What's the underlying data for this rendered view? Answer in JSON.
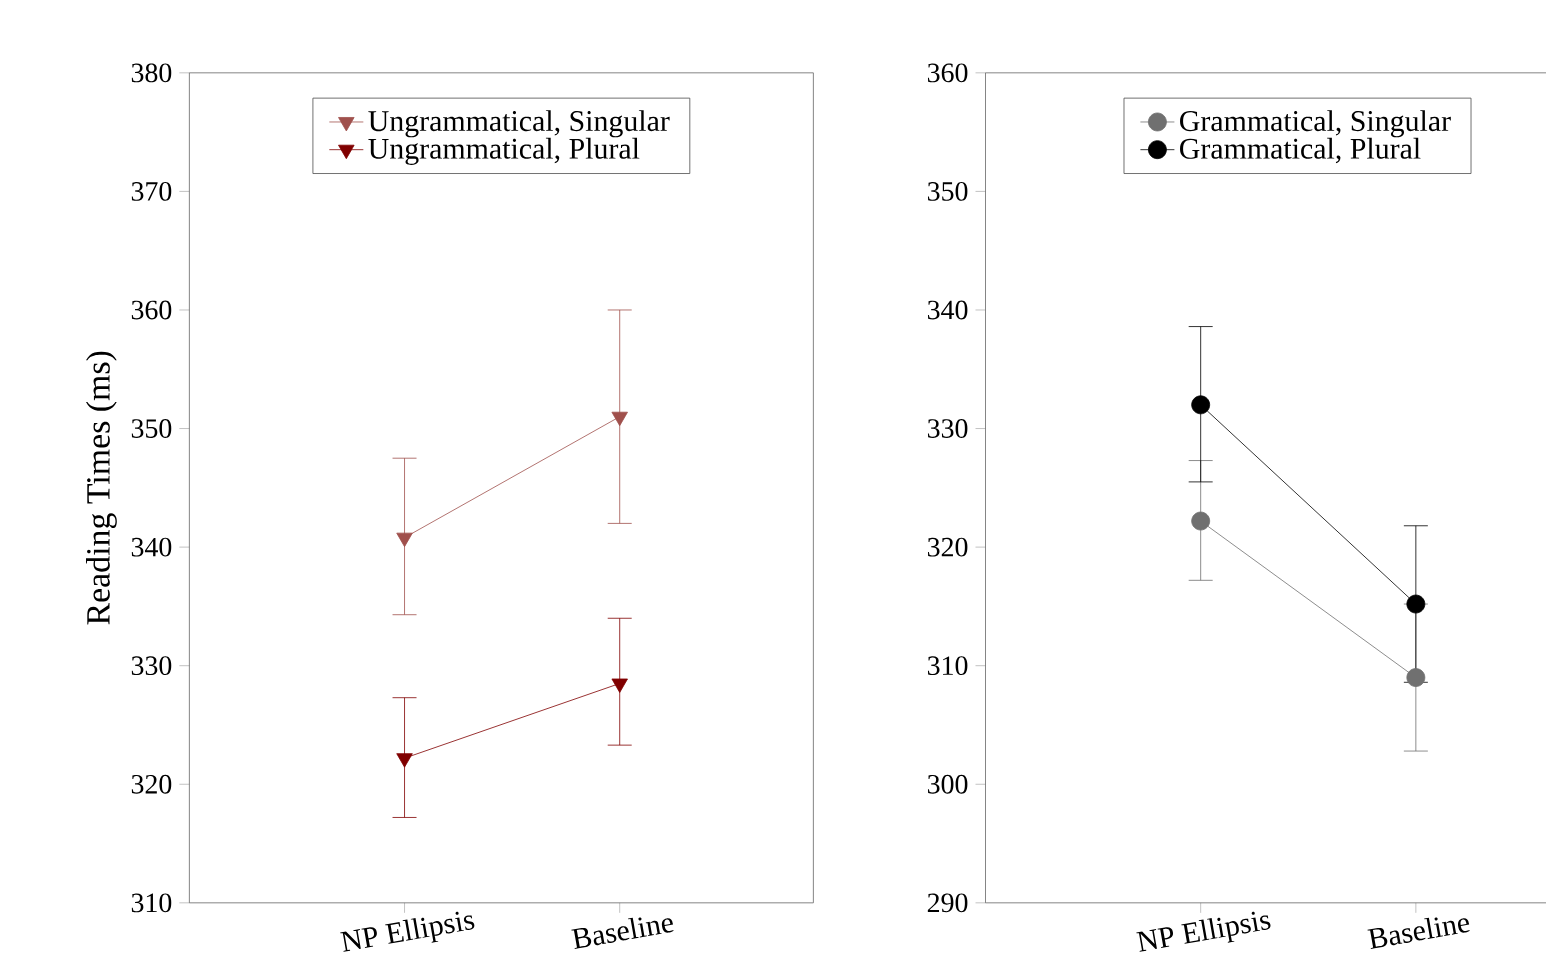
{
  "chart_data": [
    {
      "type": "line",
      "ylabel": "Reading Times (ms)",
      "categories": [
        "NP Ellipsis",
        "Baseline"
      ],
      "ylim": [
        310,
        380
      ],
      "yticks": [
        310,
        320,
        330,
        340,
        350,
        360,
        370,
        380
      ],
      "legend": "top",
      "marker": "triangle",
      "grid": false,
      "series": [
        {
          "name": "Ungrammatical, Singular",
          "color": "#a0504c",
          "values": [
            340.8,
            351.0
          ],
          "errors": [
            [
              334.3,
              347.5
            ],
            [
              342.0,
              360.0
            ]
          ]
        },
        {
          "name": "Ungrammatical, Plural",
          "color": "#800000",
          "values": [
            322.2,
            328.5
          ],
          "errors": [
            [
              317.2,
              327.3
            ],
            [
              323.3,
              334.0
            ]
          ]
        }
      ]
    },
    {
      "type": "line",
      "categories": [
        "NP Ellipsis",
        "Baseline"
      ],
      "ylim": [
        290,
        360
      ],
      "yticks": [
        290,
        300,
        310,
        320,
        330,
        340,
        350,
        360
      ],
      "legend": "top",
      "marker": "circle",
      "grid": false,
      "series": [
        {
          "name": "Grammatical, Singular",
          "color": "#707070",
          "values": [
            322.2,
            309.0
          ],
          "errors": [
            [
              317.2,
              327.3
            ],
            [
              302.8,
              315.2
            ]
          ]
        },
        {
          "name": "Grammatical, Plural",
          "color": "#000000",
          "values": [
            332.0,
            315.2
          ],
          "errors": [
            [
              325.5,
              338.6
            ],
            [
              308.6,
              321.8
            ]
          ]
        }
      ]
    }
  ]
}
